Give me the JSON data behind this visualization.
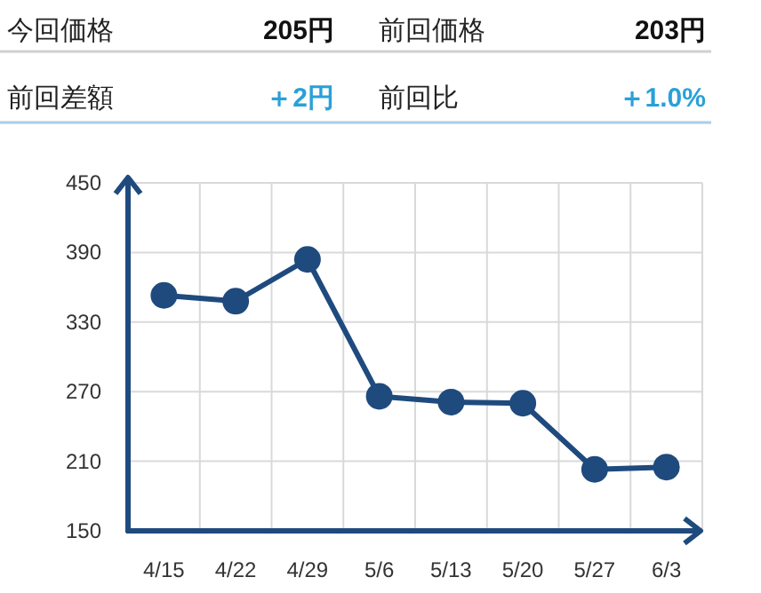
{
  "chart_data": [
    {
      "type": "other",
      "annotations": [
        "今回価格",
        "205円",
        "前回価格",
        "203円",
        "前回差額",
        "＋2円",
        "前回比",
        "＋1.0%"
      ]
    },
    {
      "type": "line",
      "categories": [
        "4/15",
        "4/22",
        "4/29",
        "5/6",
        "5/13",
        "5/20",
        "5/27",
        "6/3"
      ],
      "series": [
        {
          "color": "#1f4a7e",
          "values": [
            353,
            348,
            384,
            266,
            261,
            260,
            203,
            205
          ]
        }
      ],
      "ylim": [
        150,
        450
      ],
      "yticks": [
        150,
        210,
        270,
        330,
        390,
        450
      ],
      "grid": true,
      "marker": "circle",
      "line_style": "solid"
    }
  ]
}
